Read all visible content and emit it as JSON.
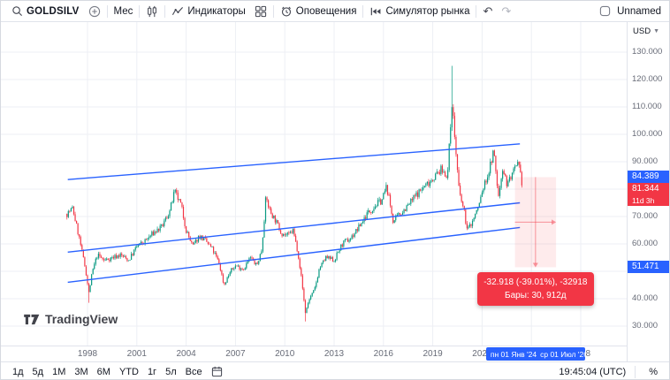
{
  "topbar": {
    "symbol": "GOLDSILV",
    "timeframe": "Мес",
    "indicators": "Индикаторы",
    "alerts": "Оповещения",
    "replay": "Симулятор рынка",
    "undo": "↶",
    "redo": "↷",
    "layout_name": "Unnamed"
  },
  "chart": {
    "watermark": "TradingView",
    "currency": "USD"
  },
  "price_axis": {
    "ticks": [
      {
        "label": "130.000",
        "value": 130
      },
      {
        "label": "120.000",
        "value": 120
      },
      {
        "label": "110.000",
        "value": 110
      },
      {
        "label": "100.000",
        "value": 100
      },
      {
        "label": "90.000",
        "value": 90
      },
      {
        "label": "80.000",
        "value": 80
      },
      {
        "label": "70.000",
        "value": 70
      },
      {
        "label": "60.000",
        "value": 60
      },
      {
        "label": "50.000",
        "value": 50
      },
      {
        "label": "40.000",
        "value": 40
      },
      {
        "label": "30.000",
        "value": 30
      }
    ],
    "badges": [
      {
        "label": "84.389",
        "value": 84.389,
        "color": "#2962ff"
      },
      {
        "label": "81.344",
        "value": 81.344,
        "color": "#f23645"
      },
      {
        "label": "11d 3h",
        "color": "#f23645",
        "below_previous": true,
        "small": true
      },
      {
        "label": "51.471",
        "value": 51.471,
        "color": "#2962ff"
      }
    ]
  },
  "time_axis": {
    "years": [
      {
        "label": "1998",
        "year": 1998
      },
      {
        "label": "2001",
        "year": 2001
      },
      {
        "label": "2004",
        "year": 2004
      },
      {
        "label": "2007",
        "year": 2007
      },
      {
        "label": "2010",
        "year": 2010
      },
      {
        "label": "2013",
        "year": 2013
      },
      {
        "label": "2016",
        "year": 2016
      },
      {
        "label": "2019",
        "year": 2019
      },
      {
        "label": "2022",
        "year": 2022
      },
      {
        "label": "2028",
        "year": 2028
      }
    ],
    "range_badge": {
      "start": "пн 01 Янв '24",
      "end": "ср 01 Июл '26"
    }
  },
  "measure_tool": {
    "price_start": 84.389,
    "price_end": 51.471,
    "year_start": 2024.0,
    "year_end": 2026.5,
    "color": "#f23645",
    "tooltip": {
      "line1": "-32.918 (-39.01%), -32918",
      "line2": "Бары: 30, 912д"
    }
  },
  "bottombar": {
    "ranges": [
      "1д",
      "5д",
      "1M",
      "3M",
      "6M",
      "YTD",
      "1г",
      "5л",
      "Все"
    ],
    "clock": "19:45:04 (UTC)",
    "percent": "%"
  },
  "chart_data": {
    "type": "candlestick",
    "title": "GOLDSILV, Мес",
    "ylabel": "USD",
    "ylim": [
      30,
      130
    ],
    "xlim": [
      1996.7,
      2028.5
    ],
    "grid": true,
    "last_close": 81.344,
    "colors": {
      "up": "#089981",
      "down": "#f23645",
      "channel": "#2962ff",
      "grid": "#edeff4"
    },
    "monthly_anchors": [
      [
        1996.75,
        71
      ],
      [
        1997.1,
        73
      ],
      [
        1997.5,
        62
      ],
      [
        1997.9,
        50
      ],
      [
        1998.08,
        42
      ],
      [
        1998.3,
        50
      ],
      [
        1998.6,
        56
      ],
      [
        1999.0,
        54
      ],
      [
        1999.5,
        55
      ],
      [
        2000.0,
        56
      ],
      [
        2000.5,
        54
      ],
      [
        2001.0,
        59
      ],
      [
        2001.5,
        61
      ],
      [
        2002.0,
        64
      ],
      [
        2002.5,
        66
      ],
      [
        2003.0,
        72
      ],
      [
        2003.3,
        79
      ],
      [
        2003.7,
        74
      ],
      [
        2004.0,
        65
      ],
      [
        2004.4,
        59
      ],
      [
        2004.8,
        63
      ],
      [
        2005.2,
        61
      ],
      [
        2005.6,
        58
      ],
      [
        2006.0,
        53
      ],
      [
        2006.3,
        45
      ],
      [
        2006.7,
        50
      ],
      [
        2007.0,
        52
      ],
      [
        2007.5,
        51
      ],
      [
        2007.9,
        55
      ],
      [
        2008.3,
        52
      ],
      [
        2008.6,
        58
      ],
      [
        2008.85,
        77
      ],
      [
        2009.1,
        72
      ],
      [
        2009.4,
        69
      ],
      [
        2009.8,
        64
      ],
      [
        2010.2,
        63
      ],
      [
        2010.5,
        65
      ],
      [
        2010.8,
        57
      ],
      [
        2011.0,
        48
      ],
      [
        2011.25,
        35
      ],
      [
        2011.5,
        40
      ],
      [
        2011.8,
        43
      ],
      [
        2012.1,
        51
      ],
      [
        2012.5,
        55
      ],
      [
        2013.0,
        54
      ],
      [
        2013.5,
        60
      ],
      [
        2014.0,
        62
      ],
      [
        2014.5,
        66
      ],
      [
        2015.0,
        71
      ],
      [
        2015.5,
        74
      ],
      [
        2015.9,
        76
      ],
      [
        2016.2,
        81
      ],
      [
        2016.6,
        68
      ],
      [
        2017.0,
        71
      ],
      [
        2017.5,
        74
      ],
      [
        2018.0,
        78
      ],
      [
        2018.5,
        81
      ],
      [
        2019.0,
        84
      ],
      [
        2019.5,
        87
      ],
      [
        2019.9,
        85
      ],
      [
        2020.17,
        112
      ],
      [
        2020.35,
        98
      ],
      [
        2020.6,
        79
      ],
      [
        2020.9,
        72
      ],
      [
        2021.1,
        65
      ],
      [
        2021.4,
        68
      ],
      [
        2021.8,
        74
      ],
      [
        2022.0,
        79
      ],
      [
        2022.4,
        86
      ],
      [
        2022.7,
        94
      ],
      [
        2023.0,
        77
      ],
      [
        2023.25,
        88
      ],
      [
        2023.5,
        82
      ],
      [
        2023.8,
        85
      ],
      [
        2024.0,
        87
      ],
      [
        2024.2,
        89
      ],
      [
        2024.45,
        81.3
      ]
    ],
    "spikes": [
      {
        "year": 1998.08,
        "low": 38.5
      },
      {
        "year": 2011.25,
        "low": 31.7
      },
      {
        "year": 2020.17,
        "high": 125
      }
    ],
    "channel_lines": [
      {
        "from": [
          1996.8,
          83.5
        ],
        "to": [
          2024.3,
          96.5
        ]
      },
      {
        "from": [
          1996.8,
          57.0
        ],
        "to": [
          2024.3,
          75.0
        ]
      },
      {
        "from": [
          1996.8,
          46.0
        ],
        "to": [
          2024.3,
          66.0
        ]
      }
    ]
  }
}
